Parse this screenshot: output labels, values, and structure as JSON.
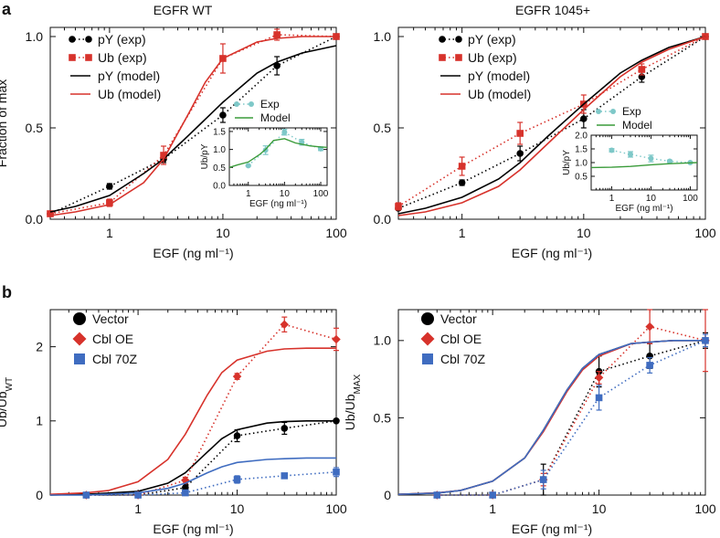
{
  "panels": [
    {
      "letter": "a"
    },
    {
      "letter": "b"
    }
  ],
  "chart_data": [
    {
      "type": "line",
      "panel": "a",
      "title": "EGFR WT",
      "xlabel": "EGF (ng ml⁻¹)",
      "ylabel": "Fraction of max",
      "xscale": "log",
      "xlim": [
        0.3,
        100
      ],
      "ylim": [
        0,
        1.05
      ],
      "xticks": [
        1,
        10,
        100
      ],
      "xtick_labels": [
        "1",
        "10",
        "100"
      ],
      "yticks": [
        0,
        0.5,
        1
      ],
      "ytick_labels": [
        "0.0",
        "0.5",
        "1.0"
      ],
      "legend_position": "top-left",
      "series": [
        {
          "name": "pY (exp)",
          "style": "dotted",
          "marker": "circle",
          "color": "#000000",
          "x": [
            0.3,
            1,
            3,
            10,
            30,
            100
          ],
          "y": [
            0.03,
            0.18,
            0.33,
            0.57,
            0.84,
            1.0
          ],
          "err": [
            0.01,
            0.015,
            0.02,
            0.04,
            0.05,
            0.0
          ]
        },
        {
          "name": "Ub (exp)",
          "style": "dotted",
          "marker": "square",
          "color": "#d7322b",
          "x": [
            0.3,
            1,
            3,
            10,
            30,
            100
          ],
          "y": [
            0.03,
            0.09,
            0.35,
            0.88,
            1.01,
            1.0
          ],
          "err": [
            0.01,
            0.02,
            0.05,
            0.08,
            0.03,
            0.0
          ]
        },
        {
          "name": "pY (model)",
          "style": "solid",
          "color": "#000000",
          "x": [
            0.3,
            0.5,
            1,
            2,
            3,
            5,
            10,
            20,
            30,
            50,
            100
          ],
          "y": [
            0.04,
            0.07,
            0.13,
            0.25,
            0.33,
            0.46,
            0.64,
            0.8,
            0.86,
            0.91,
            0.95
          ]
        },
        {
          "name": "Ub (model)",
          "style": "solid",
          "color": "#d7322b",
          "x": [
            0.3,
            0.5,
            1,
            2,
            3,
            5,
            7,
            10,
            20,
            30,
            50,
            100
          ],
          "y": [
            0.02,
            0.04,
            0.08,
            0.2,
            0.33,
            0.58,
            0.75,
            0.88,
            0.97,
            0.99,
            1.0,
            1.0
          ]
        }
      ],
      "inset": {
        "xlabel": "EGF (ng ml⁻¹)",
        "ylabel": "Ub/pY",
        "xscale": "log",
        "xlim": [
          0.3,
          150
        ],
        "ylim": [
          0,
          1.6
        ],
        "xticks": [
          1,
          10,
          100
        ],
        "xtick_labels": [
          "1",
          "10",
          "100"
        ],
        "yticks": [
          0,
          0.5,
          1,
          1.5
        ],
        "ytick_labels": [
          "0.0",
          "0.5",
          "1.0",
          "1.5"
        ],
        "series": [
          {
            "name": "Exp",
            "style": "dotted",
            "marker": "circle",
            "color": "#7ec8c8",
            "x": [
              1,
              3,
              10,
              30,
              100
            ],
            "y": [
              0.55,
              0.98,
              1.48,
              1.2,
              1.02
            ],
            "err": [
              0.02,
              0.12,
              0.08,
              0.08,
              0.05
            ]
          },
          {
            "name": "Model",
            "style": "solid",
            "color": "#3a9b3a",
            "x": [
              0.3,
              0.5,
              1,
              2,
              3,
              5,
              10,
              20,
              50,
              100,
              150
            ],
            "y": [
              0.5,
              0.57,
              0.65,
              0.85,
              1.0,
              1.25,
              1.3,
              1.18,
              1.1,
              1.07,
              1.06
            ]
          }
        ]
      }
    },
    {
      "type": "line",
      "panel": "a",
      "title": "EGFR 1045+",
      "xlabel": "EGF (ng ml⁻¹)",
      "ylabel": "",
      "xscale": "log",
      "xlim": [
        0.3,
        100
      ],
      "ylim": [
        0,
        1.05
      ],
      "xticks": [
        1,
        10,
        100
      ],
      "xtick_labels": [
        "1",
        "10",
        "100"
      ],
      "yticks": [
        0,
        0.5,
        1
      ],
      "ytick_labels": [
        "0.0",
        "0.5",
        "1.0"
      ],
      "legend_position": "top-left",
      "series": [
        {
          "name": "pY (exp)",
          "style": "dotted",
          "marker": "circle",
          "color": "#000000",
          "x": [
            0.3,
            1,
            3,
            10,
            30,
            100
          ],
          "y": [
            0.06,
            0.2,
            0.36,
            0.55,
            0.78,
            1.0
          ],
          "err": [
            0.01,
            0.015,
            0.04,
            0.05,
            0.03,
            0.0
          ]
        },
        {
          "name": "Ub (exp)",
          "style": "dotted",
          "marker": "square",
          "color": "#d7322b",
          "x": [
            0.3,
            1,
            3,
            10,
            30,
            100
          ],
          "y": [
            0.07,
            0.29,
            0.47,
            0.63,
            0.82,
            1.0
          ],
          "err": [
            0.02,
            0.05,
            0.06,
            0.05,
            0.03,
            0.0
          ]
        },
        {
          "name": "pY (model)",
          "style": "solid",
          "color": "#000000",
          "x": [
            0.3,
            0.5,
            1,
            2,
            3,
            5,
            10,
            20,
            30,
            50,
            100
          ],
          "y": [
            0.03,
            0.06,
            0.12,
            0.22,
            0.31,
            0.45,
            0.63,
            0.8,
            0.87,
            0.94,
            1.0
          ]
        },
        {
          "name": "Ub (model)",
          "style": "solid",
          "color": "#d7322b",
          "x": [
            0.3,
            0.5,
            1,
            2,
            3,
            5,
            10,
            20,
            30,
            50,
            100
          ],
          "y": [
            0.02,
            0.04,
            0.09,
            0.18,
            0.27,
            0.41,
            0.6,
            0.78,
            0.86,
            0.93,
            1.0
          ]
        }
      ],
      "inset": {
        "xlabel": "EGF (ng ml⁻¹)",
        "ylabel": "Ub/pY",
        "xscale": "log",
        "xlim": [
          0.3,
          150
        ],
        "ylim": [
          0,
          2.0
        ],
        "xticks": [
          1,
          10,
          100
        ],
        "xtick_labels": [
          "1",
          "10",
          "100"
        ],
        "yticks": [
          0.5,
          1,
          1.5,
          2
        ],
        "ytick_labels": [
          "0.5",
          "1.0",
          "1.5",
          "2.0"
        ],
        "series": [
          {
            "name": "Exp",
            "style": "dotted",
            "marker": "circle",
            "color": "#7ec8c8",
            "x": [
              1,
              3,
              10,
              30,
              100
            ],
            "y": [
              1.45,
              1.3,
              1.15,
              1.05,
              1.0
            ],
            "err": [
              0.06,
              0.1,
              0.12,
              0.04,
              0.02
            ]
          },
          {
            "name": "Model",
            "style": "solid",
            "color": "#3a9b3a",
            "x": [
              0.3,
              1,
              3,
              10,
              30,
              100,
              150
            ],
            "y": [
              0.82,
              0.83,
              0.86,
              0.92,
              0.96,
              0.99,
              1.0
            ]
          }
        ]
      }
    },
    {
      "type": "line",
      "panel": "b",
      "title": "",
      "xlabel": "EGF (ng ml⁻¹)",
      "ylabel": "Ub/Ub",
      "ylabel_subscript": "WT",
      "xscale": "log",
      "xlim": [
        0.13,
        100
      ],
      "ylim": [
        0,
        2.5
      ],
      "xticks": [
        1,
        10,
        100
      ],
      "xtick_labels": [
        "1",
        "10",
        "100"
      ],
      "yticks": [
        0,
        1,
        2
      ],
      "ytick_labels": [
        "0",
        "1",
        "2"
      ],
      "legend_position": "top-left",
      "series": [
        {
          "name": "Vector",
          "marker": "circle",
          "color": "#000000",
          "x": [
            0.3,
            1,
            3,
            10,
            30,
            100
          ],
          "y": [
            0,
            0,
            0.1,
            0.8,
            0.9,
            1.0
          ],
          "err": [
            0,
            0,
            0.05,
            0.08,
            0.08,
            0
          ],
          "model": {
            "x": [
              0.13,
              0.3,
              1,
              2,
              3,
              5,
              7,
              10,
              20,
              30,
              50,
              100
            ],
            "y": [
              0.0,
              0.01,
              0.05,
              0.16,
              0.3,
              0.58,
              0.76,
              0.88,
              0.97,
              0.99,
              1.0,
              1.0
            ]
          }
        },
        {
          "name": "Cbl OE",
          "marker": "diamond",
          "color": "#d7322b",
          "x": [
            0.3,
            1,
            3,
            10,
            30,
            100
          ],
          "y": [
            0,
            0,
            0.2,
            1.6,
            2.3,
            2.1
          ],
          "err": [
            0,
            0,
            0.04,
            0.04,
            0.1,
            0.15
          ],
          "model": {
            "x": [
              0.13,
              0.3,
              0.5,
              1,
              2,
              3,
              5,
              7,
              10,
              20,
              30,
              50,
              100
            ],
            "y": [
              0.01,
              0.03,
              0.06,
              0.18,
              0.48,
              0.82,
              1.35,
              1.65,
              1.82,
              1.94,
              1.97,
              1.98,
              1.98
            ]
          }
        },
        {
          "name": "Cbl 70Z",
          "marker": "square",
          "color": "#3f6cc0",
          "x": [
            0.3,
            1,
            3,
            10,
            30,
            100
          ],
          "y": [
            0,
            0,
            0.03,
            0.21,
            0.26,
            0.31
          ],
          "err": [
            0,
            0,
            0.02,
            0.05,
            0.03,
            0.06
          ],
          "model": {
            "x": [
              0.13,
              0.3,
              1,
              2,
              3,
              5,
              7,
              10,
              20,
              30,
              50,
              100
            ],
            "y": [
              0.0,
              0.0,
              0.03,
              0.09,
              0.16,
              0.3,
              0.38,
              0.44,
              0.48,
              0.49,
              0.5,
              0.5
            ]
          }
        }
      ]
    },
    {
      "type": "line",
      "panel": "b",
      "title": "",
      "xlabel": "EGF (ng ml⁻¹)",
      "ylabel": "Ub/Ub",
      "ylabel_subscript": "MAX",
      "xscale": "log",
      "xlim": [
        0.13,
        100
      ],
      "ylim": [
        0,
        1.2
      ],
      "xticks": [
        1,
        10,
        100
      ],
      "xtick_labels": [
        "1",
        "10",
        "100"
      ],
      "yticks": [
        0,
        0.5,
        1
      ],
      "ytick_labels": [
        "0",
        "0.5",
        "1.0"
      ],
      "legend_position": "top-left",
      "series": [
        {
          "name": "Vector",
          "marker": "circle",
          "color": "#000000",
          "x": [
            0.3,
            1,
            3,
            10,
            30,
            100
          ],
          "y": [
            0,
            0,
            0.1,
            0.8,
            0.9,
            1.0
          ],
          "err": [
            0,
            0,
            0.1,
            0.1,
            0.08,
            0.05
          ],
          "model": {
            "x": [
              0.13,
              0.3,
              0.5,
              1,
              2,
              3,
              5,
              7,
              10,
              20,
              30,
              50,
              100
            ],
            "y": [
              0.005,
              0.013,
              0.03,
              0.09,
              0.24,
              0.42,
              0.68,
              0.82,
              0.91,
              0.98,
              0.99,
              1.0,
              1.0
            ]
          }
        },
        {
          "name": "Cbl OE",
          "marker": "diamond",
          "color": "#d7322b",
          "x": [
            0.3,
            1,
            3,
            10,
            30,
            100
          ],
          "y": [
            0,
            0,
            0.1,
            0.76,
            1.09,
            1.0
          ],
          "err": [
            0,
            0,
            0.04,
            0.04,
            0.11,
            0.2
          ],
          "model": {
            "x": [
              0.13,
              0.3,
              0.5,
              1,
              2,
              3,
              5,
              7,
              10,
              20,
              30,
              50,
              100
            ],
            "y": [
              0.005,
              0.014,
              0.03,
              0.09,
              0.24,
              0.41,
              0.67,
              0.81,
              0.9,
              0.98,
              0.99,
              1.0,
              1.0
            ]
          }
        },
        {
          "name": "Cbl 70Z",
          "marker": "square",
          "color": "#3f6cc0",
          "x": [
            0.3,
            1,
            3,
            10,
            30,
            100
          ],
          "y": [
            0,
            0,
            0.1,
            0.63,
            0.84,
            1.0
          ],
          "err": [
            0,
            0,
            0.06,
            0.08,
            0.05,
            0.04
          ],
          "model": {
            "x": [
              0.13,
              0.3,
              0.5,
              1,
              2,
              3,
              5,
              7,
              10,
              20,
              30,
              50,
              100
            ],
            "y": [
              0.005,
              0.013,
              0.03,
              0.09,
              0.24,
              0.42,
              0.68,
              0.82,
              0.91,
              0.98,
              0.99,
              1.0,
              1.0
            ]
          }
        }
      ]
    }
  ]
}
